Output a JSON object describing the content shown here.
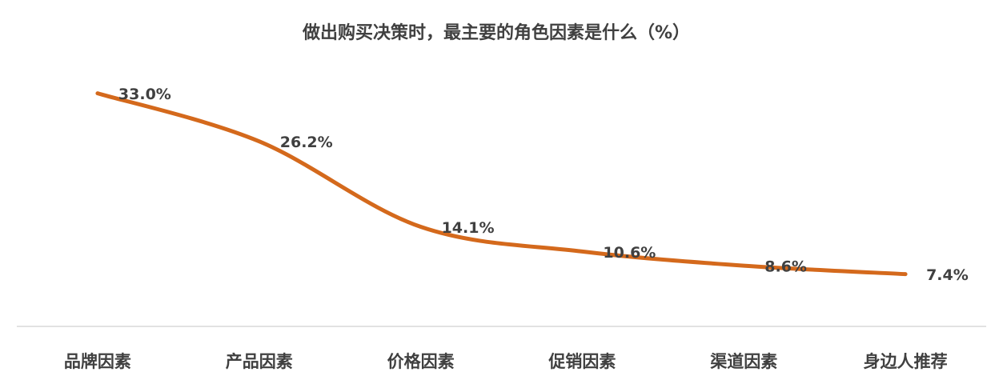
{
  "chart_data": {
    "type": "line",
    "title": "做出购买决策时，最主要的角色因素是什么（%）",
    "categories": [
      "品牌因素",
      "产品因素",
      "价格因素",
      "促销因素",
      "渠道因素",
      "身边人推荐"
    ],
    "values": [
      33.0,
      26.2,
      14.1,
      10.6,
      8.6,
      7.4
    ],
    "value_labels": [
      "33.0%",
      "26.2%",
      "14.1%",
      "10.6%",
      "8.6%",
      "7.4%"
    ],
    "color": "#d4691c",
    "smooth": true,
    "ylim": [
      0,
      35
    ]
  }
}
